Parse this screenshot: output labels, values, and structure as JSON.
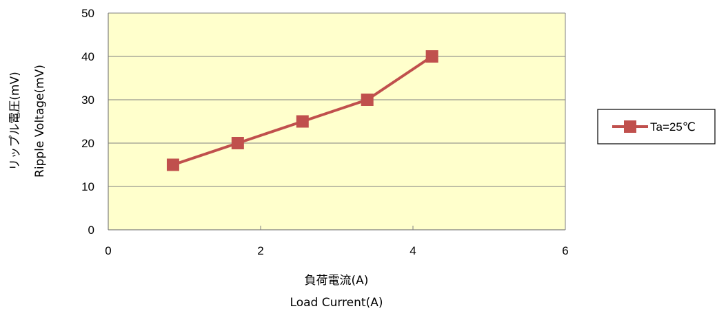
{
  "chart_data": {
    "type": "line",
    "xlabel_lines": [
      "負荷電流(A)",
      "Load Current(A)"
    ],
    "ylabel_lines": [
      "リップル電圧(mV)",
      "Ripple  Voltage(mV)"
    ],
    "xlim": [
      0,
      6
    ],
    "ylim": [
      0,
      50
    ],
    "x_ticks": [
      0,
      2,
      4,
      6
    ],
    "y_ticks": [
      0,
      10,
      20,
      30,
      40,
      50
    ],
    "grid": "horizontal",
    "plot_background": "#ffffcc",
    "legend_position": "right",
    "series": [
      {
        "name": "Ta=25℃",
        "color": "#c0504d",
        "marker": "square",
        "x": [
          0.85,
          1.7,
          2.55,
          3.4,
          4.25
        ],
        "y": [
          15,
          20,
          25,
          30,
          40
        ]
      }
    ]
  }
}
